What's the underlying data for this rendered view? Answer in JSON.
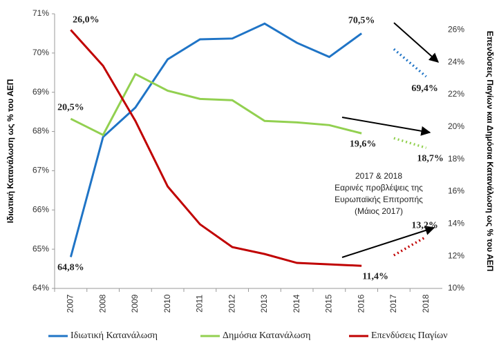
{
  "chart_data": {
    "type": "line",
    "categories": [
      "2007",
      "2008",
      "2009",
      "2010",
      "2011",
      "2012",
      "2013",
      "2014",
      "2015",
      "2016",
      "2017",
      "2018"
    ],
    "ylabel": "Ιδιωτική Κατανάλωση ως % του ΑΕΠ",
    "y2label": "Επενδύσεις Παγίων και Δημόσια Κατανάλωση ως % του ΑΕΠ",
    "ylim": [
      64,
      71
    ],
    "yticks": [
      {
        "value": 64,
        "label": "64%"
      },
      {
        "value": 65,
        "label": "65%"
      },
      {
        "value": 66,
        "label": "66%"
      },
      {
        "value": 67,
        "label": "67%"
      },
      {
        "value": 68,
        "label": "68%"
      },
      {
        "value": 69,
        "label": "69%"
      },
      {
        "value": 70,
        "label": "70%"
      },
      {
        "value": 71,
        "label": "71%"
      }
    ],
    "y2lim": [
      10,
      27
    ],
    "y2ticks": [
      {
        "value": 10,
        "label": "10%"
      },
      {
        "value": 12,
        "label": "12%"
      },
      {
        "value": 14,
        "label": "14%"
      },
      {
        "value": 16,
        "label": "16%"
      },
      {
        "value": 18,
        "label": "18%"
      },
      {
        "value": 20,
        "label": "20%"
      },
      {
        "value": 22,
        "label": "22%"
      },
      {
        "value": 24,
        "label": "24%"
      },
      {
        "value": 26,
        "label": "26%"
      }
    ],
    "dash_after": "2016",
    "annotation": [
      "2017 & 2018",
      "Εαρινές προβλέψεις της",
      "Ευρωπαϊκής Επιτροπής",
      "(Μάιος 2017)"
    ],
    "series": [
      {
        "name": "Ιδιωτική Κατανάλωση",
        "color": "#1F74C6",
        "axis": "y",
        "values": [
          64.8,
          67.86,
          68.61,
          69.84,
          70.35,
          70.37,
          70.75,
          70.26,
          69.9,
          70.5,
          70.1,
          69.4
        ],
        "value_labels": [
          "64,8%",
          null,
          null,
          null,
          null,
          null,
          null,
          null,
          null,
          "70,5%",
          null,
          "69,4%"
        ]
      },
      {
        "name": "Δημόσια Κατανάλωση",
        "color": "#92D050",
        "axis": "y2",
        "values": [
          20.5,
          19.5,
          23.27,
          22.24,
          21.73,
          21.65,
          20.37,
          20.28,
          20.11,
          19.6,
          19.3,
          18.7
        ],
        "value_labels": [
          "20,5%",
          null,
          null,
          null,
          null,
          null,
          null,
          null,
          null,
          "19,6%",
          null,
          "18,7%"
        ]
      },
      {
        "name": "Επενδύσεις Παγίων",
        "color": "#C00000",
        "axis": "y2",
        "values": [
          26.0,
          23.78,
          20.37,
          16.31,
          13.97,
          12.56,
          12.13,
          11.58,
          11.49,
          11.4,
          12.05,
          13.2
        ],
        "value_labels": [
          "26,0%",
          null,
          null,
          null,
          null,
          null,
          null,
          null,
          null,
          "11,4%",
          null,
          "13,2%"
        ]
      }
    ]
  }
}
